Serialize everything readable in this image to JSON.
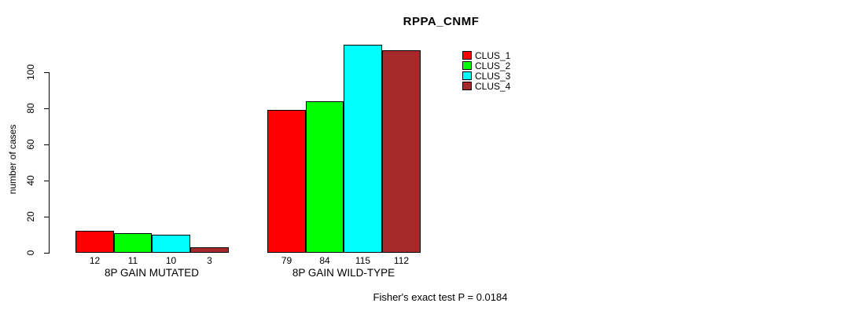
{
  "chart_data": {
    "type": "bar",
    "title": "RPPA_CNMF",
    "categories": [
      "8P GAIN MUTATED",
      "8P GAIN WILD-TYPE"
    ],
    "series": [
      {
        "name": "CLUS_1",
        "color": "#FF0000",
        "values": [
          12,
          79
        ]
      },
      {
        "name": "CLUS_2",
        "color": "#00FF00",
        "values": [
          11,
          84
        ]
      },
      {
        "name": "CLUS_3",
        "color": "#00FFFF",
        "values": [
          10,
          115
        ]
      },
      {
        "name": "CLUS_4",
        "color": "#A52A2A",
        "values": [
          3,
          112
        ]
      }
    ],
    "xlabel": "",
    "ylabel": "number of cases",
    "yticks": [
      0,
      20,
      40,
      60,
      80,
      100
    ],
    "ylim": [
      0,
      116
    ],
    "bar_value_labels": true,
    "grid": false,
    "legend_position": "top-right",
    "annotation": "Fisher's exact test P = 0.0184"
  }
}
